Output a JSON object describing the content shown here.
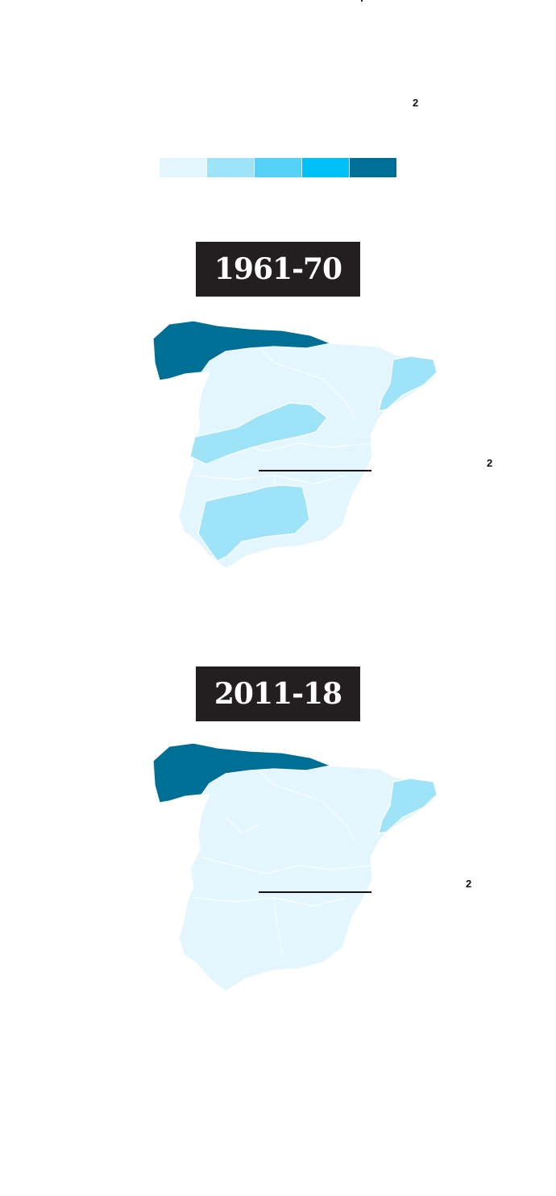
{
  "legend": {
    "superscript": "2",
    "colors": [
      "#e3f6fd",
      "#9fe3f9",
      "#56d1f5",
      "#00c0f5",
      "#006f96"
    ]
  },
  "maps": [
    {
      "period": "1961-70",
      "superscript": "2",
      "regions": {
        "north": "#006f96",
        "catalonia": "#9fe3f9",
        "central_band": "#9fe3f9",
        "andalusia_inner": "#9fe3f9",
        "base": "#e3f6fd"
      }
    },
    {
      "period": "2011-18",
      "superscript": "2",
      "regions": {
        "north": "#006f96",
        "catalonia": "#9fe3f9",
        "base": "#e3f6fd"
      }
    }
  ]
}
